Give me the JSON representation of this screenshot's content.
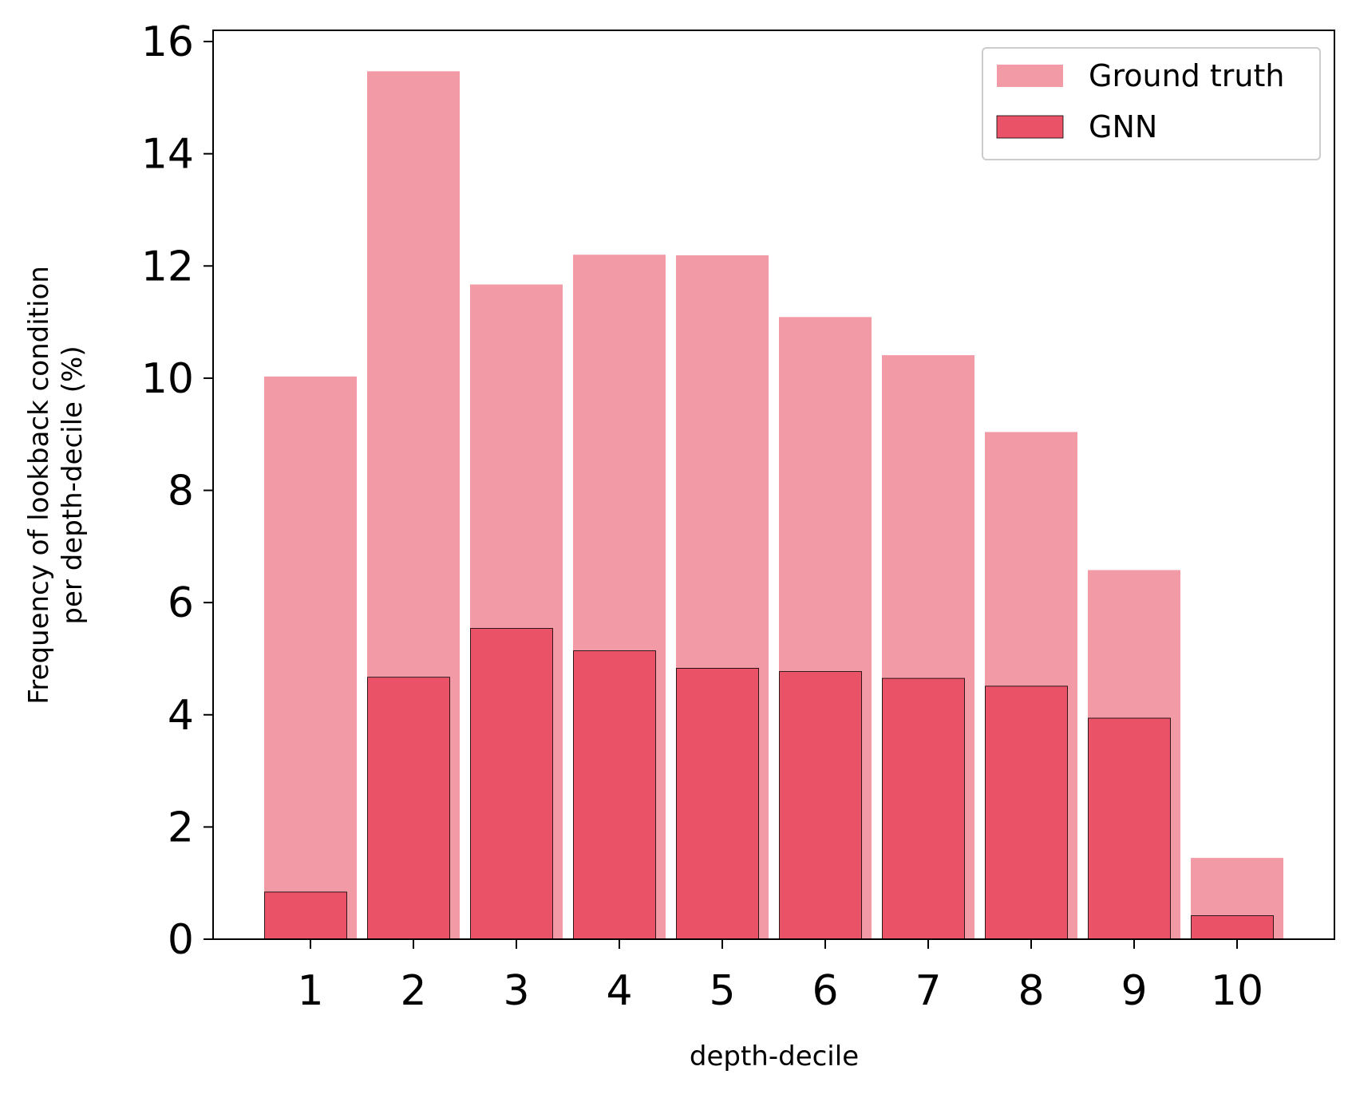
{
  "chart_data": {
    "type": "bar",
    "title": "",
    "xlabel": "depth-decile",
    "ylabel_lines": [
      "Frequency of lookback condition",
      "per depth-decile (%)"
    ],
    "categories": [
      "1",
      "2",
      "3",
      "4",
      "5",
      "6",
      "7",
      "8",
      "9",
      "10"
    ],
    "ylim": [
      0,
      16.2
    ],
    "yticks": [
      0,
      2,
      4,
      6,
      8,
      10,
      12,
      14,
      16
    ],
    "ytick_labels": [
      "0",
      "2",
      "4",
      "6",
      "8",
      "10",
      "12",
      "14",
      "16"
    ],
    "grid": false,
    "legend_position": "top-right",
    "series": [
      {
        "name": "Ground truth",
        "color": "#f29ba6",
        "values": [
          10.03,
          15.47,
          11.67,
          12.2,
          12.19,
          11.09,
          10.41,
          9.04,
          6.58,
          1.45
        ]
      },
      {
        "name": "GNN",
        "color": "#e95267",
        "values": [
          0.84,
          4.67,
          5.54,
          5.14,
          4.83,
          4.77,
          4.65,
          4.51,
          3.94,
          0.42
        ]
      }
    ]
  }
}
